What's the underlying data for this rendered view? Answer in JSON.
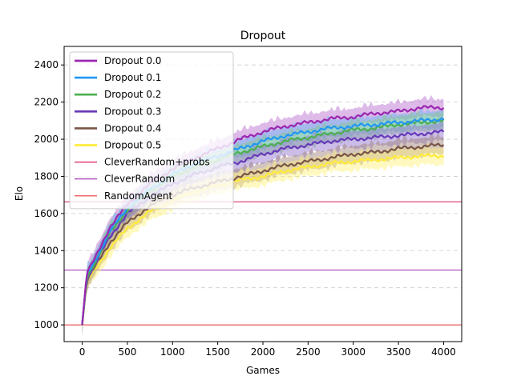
{
  "chart_data": {
    "type": "line",
    "title": "Dropout",
    "xlabel": "Games",
    "ylabel": "Elo",
    "xlim": [
      -200,
      4200
    ],
    "ylim": [
      910,
      2500
    ],
    "xticks": [
      0,
      500,
      1000,
      1500,
      2000,
      2500,
      3000,
      3500,
      4000
    ],
    "yticks": [
      1000,
      1200,
      1400,
      1600,
      1800,
      2000,
      2200,
      2400
    ],
    "grid": "horizontal-dashed",
    "legend_position": "top-left",
    "series": [
      {
        "name": "Dropout 0.0",
        "color": "#9c27b0",
        "band_color": "#b366cc",
        "x": [
          0,
          50,
          100,
          200,
          300,
          500,
          750,
          1000,
          1250,
          1500,
          1750,
          2000,
          2250,
          2500,
          2750,
          3000,
          3250,
          3500,
          3750,
          4000
        ],
        "y": [
          1000,
          1280,
          1320,
          1420,
          1520,
          1650,
          1760,
          1840,
          1900,
          1950,
          2000,
          2040,
          2070,
          2090,
          2110,
          2120,
          2140,
          2150,
          2170,
          2170
        ]
      },
      {
        "name": "Dropout 0.1",
        "color": "#2196f3",
        "band_color": "#64b5f6",
        "x": [
          0,
          50,
          100,
          200,
          300,
          500,
          750,
          1000,
          1250,
          1500,
          1750,
          2000,
          2250,
          2500,
          2750,
          3000,
          3250,
          3500,
          3750,
          4000
        ],
        "y": [
          1000,
          1270,
          1310,
          1400,
          1500,
          1630,
          1730,
          1810,
          1870,
          1910,
          1950,
          1990,
          2020,
          2040,
          2060,
          2070,
          2080,
          2090,
          2100,
          2110
        ]
      },
      {
        "name": "Dropout 0.2",
        "color": "#4caf50",
        "band_color": "#7fc882",
        "x": [
          0,
          50,
          100,
          200,
          300,
          500,
          750,
          1000,
          1250,
          1500,
          1750,
          2000,
          2250,
          2500,
          2750,
          3000,
          3250,
          3500,
          3750,
          4000
        ],
        "y": [
          1000,
          1260,
          1300,
          1390,
          1490,
          1620,
          1720,
          1800,
          1850,
          1890,
          1930,
          1960,
          1990,
          2010,
          2030,
          2050,
          2060,
          2080,
          2090,
          2100
        ]
      },
      {
        "name": "Dropout 0.3",
        "color": "#673ab7",
        "band_color": "#8c6ccb",
        "x": [
          0,
          50,
          100,
          200,
          300,
          500,
          750,
          1000,
          1250,
          1500,
          1750,
          2000,
          2250,
          2500,
          2750,
          3000,
          3250,
          3500,
          3750,
          4000
        ],
        "y": [
          1000,
          1250,
          1290,
          1380,
          1470,
          1600,
          1690,
          1760,
          1810,
          1850,
          1880,
          1920,
          1950,
          1970,
          1990,
          2000,
          2010,
          2020,
          2030,
          2040
        ]
      },
      {
        "name": "Dropout 0.4",
        "color": "#795548",
        "band_color": "#9c7c70",
        "x": [
          0,
          50,
          100,
          200,
          300,
          500,
          750,
          1000,
          1250,
          1500,
          1750,
          2000,
          2250,
          2500,
          2750,
          3000,
          3250,
          3500,
          3750,
          4000
        ],
        "y": [
          1000,
          1240,
          1280,
          1360,
          1440,
          1550,
          1640,
          1700,
          1740,
          1770,
          1800,
          1830,
          1860,
          1880,
          1900,
          1920,
          1930,
          1950,
          1960,
          1970
        ]
      },
      {
        "name": "Dropout 0.5",
        "color": "#ffeb3b",
        "band_color": "#fff176",
        "x": [
          0,
          50,
          100,
          200,
          300,
          500,
          750,
          1000,
          1250,
          1500,
          1750,
          2000,
          2250,
          2500,
          2750,
          3000,
          3250,
          3500,
          3750,
          4000
        ],
        "y": [
          1000,
          1230,
          1270,
          1340,
          1410,
          1520,
          1610,
          1670,
          1720,
          1750,
          1780,
          1800,
          1830,
          1850,
          1870,
          1880,
          1890,
          1900,
          1910,
          1910
        ]
      }
    ],
    "reference_lines": [
      {
        "name": "CleverRandom+probs",
        "color": "#d81b60",
        "y": 1663
      },
      {
        "name": "CleverRandom",
        "color": "#9c27b0",
        "y": 1295
      },
      {
        "name": "RandomAgent",
        "color": "#e53935",
        "y": 1000
      }
    ]
  }
}
